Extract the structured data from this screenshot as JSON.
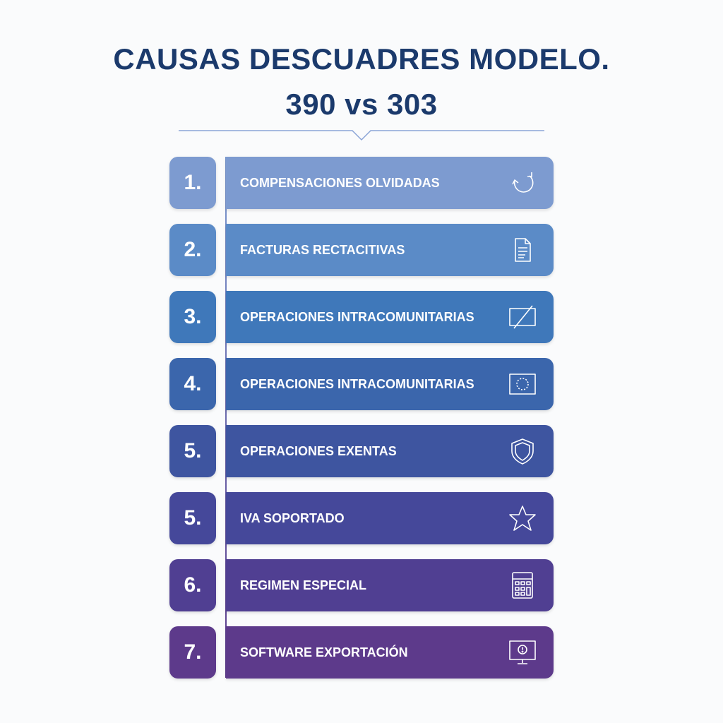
{
  "title": {
    "line1": "CAUSAS DESCUADRES MODELO.",
    "line2": "390 vs 303"
  },
  "items": [
    {
      "number": "1.",
      "label": "COMPENSACIONES OLVIDADAS",
      "icon": "refresh-icon",
      "color": "#7d9bd0"
    },
    {
      "number": "2.",
      "label": "FACTURAS RECTACITIVAS",
      "icon": "document-icon",
      "color": "#5b8bc7"
    },
    {
      "number": "3.",
      "label": "OPERACIONES INTRACOMUNITARIAS",
      "icon": "slashed-rectangle-icon",
      "color": "#3f78ba"
    },
    {
      "number": "4.",
      "label": "OPERACIONES INTRACOMUNITARIAS",
      "icon": "eu-flag-icon",
      "color": "#3b66ac"
    },
    {
      "number": "5.",
      "label": "OPERACIONES EXENTAS",
      "icon": "shield-icon",
      "color": "#3e55a0"
    },
    {
      "number": "5.",
      "label": "IVA SOPORTADO",
      "icon": "star-icon",
      "color": "#45489a"
    },
    {
      "number": "6.",
      "label": "REGIMEN ESPECIAL",
      "icon": "calculator-icon",
      "color": "#503f92"
    },
    {
      "number": "7.",
      "label": "SOFTWARE EXPORTACIÓN",
      "icon": "monitor-alert-icon",
      "color": "#5d3a8b"
    }
  ]
}
